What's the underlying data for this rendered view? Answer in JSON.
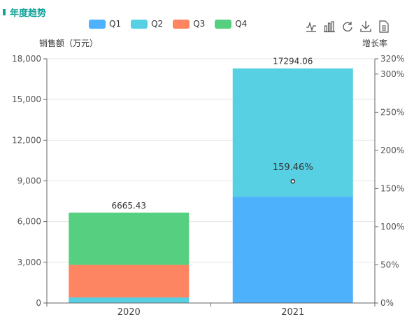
{
  "header": {
    "title": "年度趋势"
  },
  "toolbox": {
    "icons": [
      "line-chart-icon",
      "bar-chart-icon",
      "refresh-icon",
      "download-icon",
      "data-view-icon"
    ]
  },
  "colors": {
    "Q1": "#4db1fc",
    "Q2": "#57d0e3",
    "Q3": "#fe8562",
    "Q4": "#57cf80",
    "accent": "#14a39a"
  },
  "chart_data": {
    "type": "bar",
    "stacked": true,
    "categories": [
      "2020",
      "2021"
    ],
    "series": [
      {
        "name": "Q1",
        "values": [
          0,
          7836
        ]
      },
      {
        "name": "Q2",
        "values": [
          410,
          9458.06
        ]
      },
      {
        "name": "Q3",
        "values": [
          2400,
          0
        ]
      },
      {
        "name": "Q4",
        "values": [
          3855.43,
          0
        ]
      }
    ],
    "totals": [
      "6665.43",
      "17294.06"
    ],
    "line": {
      "name": "增长率",
      "values": [
        null,
        159.46
      ],
      "label": "159.46%"
    },
    "ylabel": "销售额（万元）",
    "ylim": [
      0,
      18000
    ],
    "yticks": [
      "0",
      "3,000",
      "6,000",
      "9,000",
      "12,000",
      "15,000",
      "18,000"
    ],
    "y2label": "增长率",
    "y2lim": [
      0,
      320
    ],
    "y2ticks": [
      "0%",
      "50%",
      "100%",
      "150%",
      "200%",
      "250%",
      "300%",
      "320%"
    ],
    "legend_position": "top",
    "grid": true
  }
}
